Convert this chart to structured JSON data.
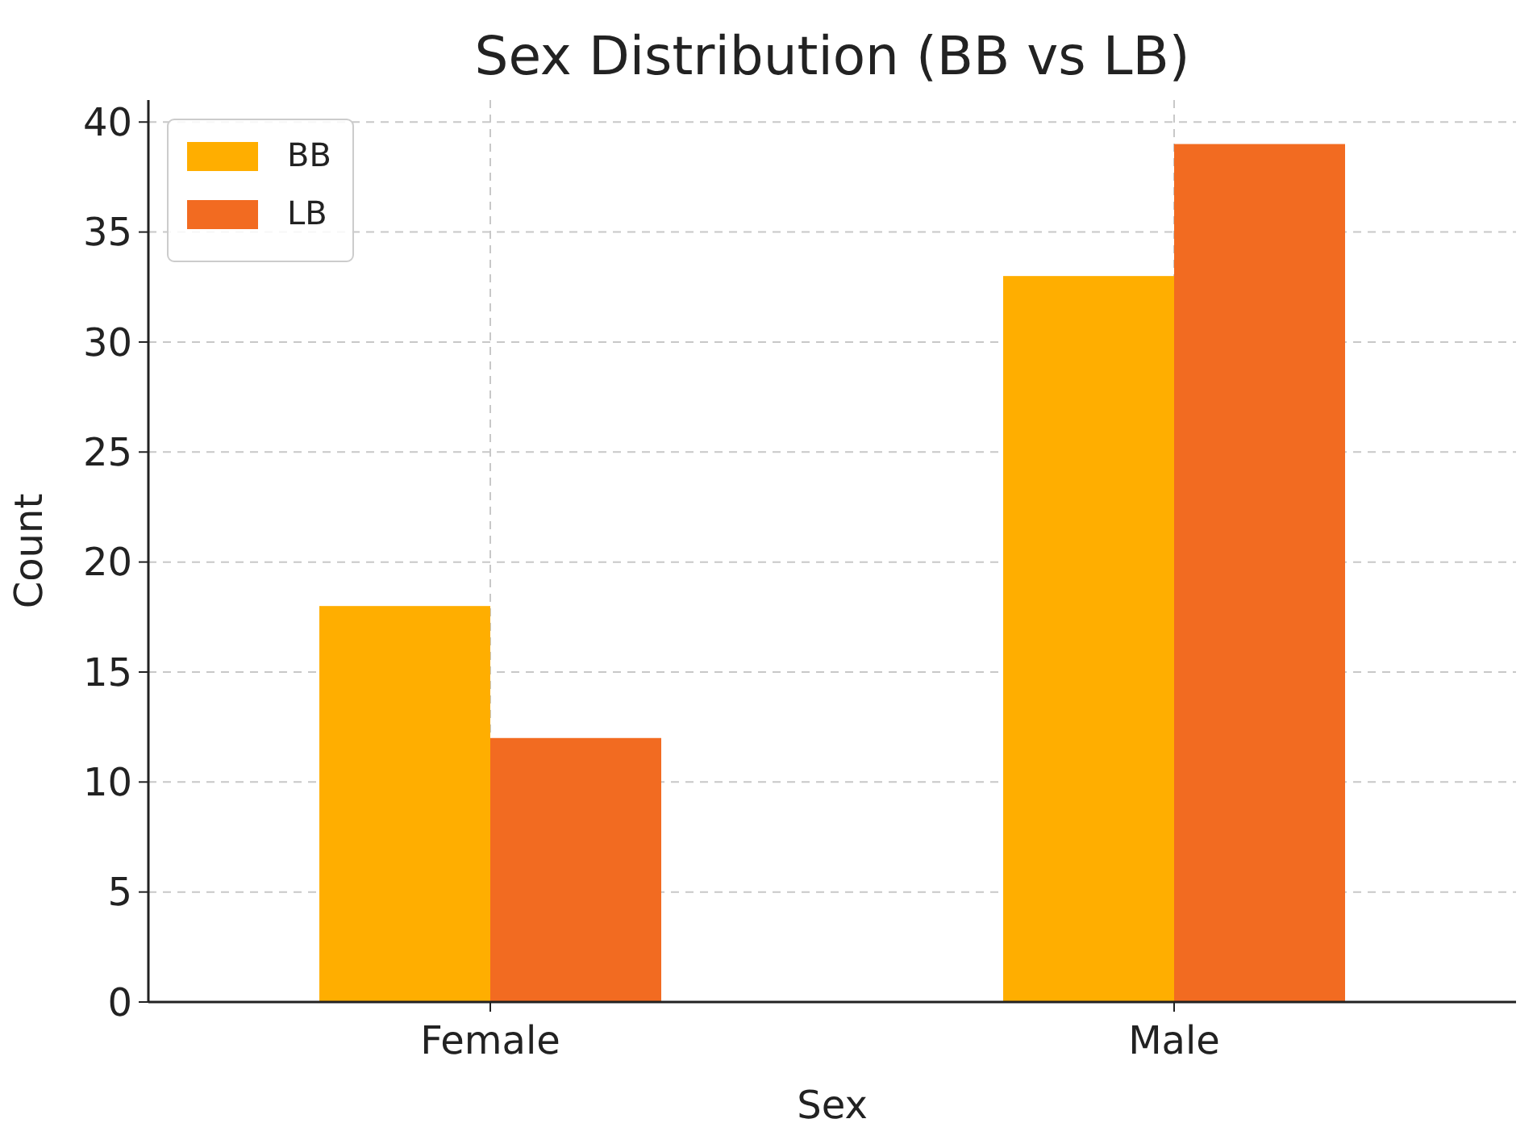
{
  "chart_data": {
    "type": "bar",
    "title": "Sex Distribution (BB vs LB)",
    "xlabel": "Sex",
    "ylabel": "Count",
    "categories": [
      "Female",
      "Male"
    ],
    "series": [
      {
        "name": "BB",
        "color": "#ffae00",
        "values": [
          18,
          33
        ]
      },
      {
        "name": "LB",
        "color": "#f26b21",
        "values": [
          12,
          39
        ]
      }
    ],
    "ylim": [
      0,
      41
    ],
    "yticks": [
      0,
      5,
      10,
      15,
      20,
      25,
      30,
      35,
      40
    ],
    "grid": true,
    "legend": "top left"
  }
}
